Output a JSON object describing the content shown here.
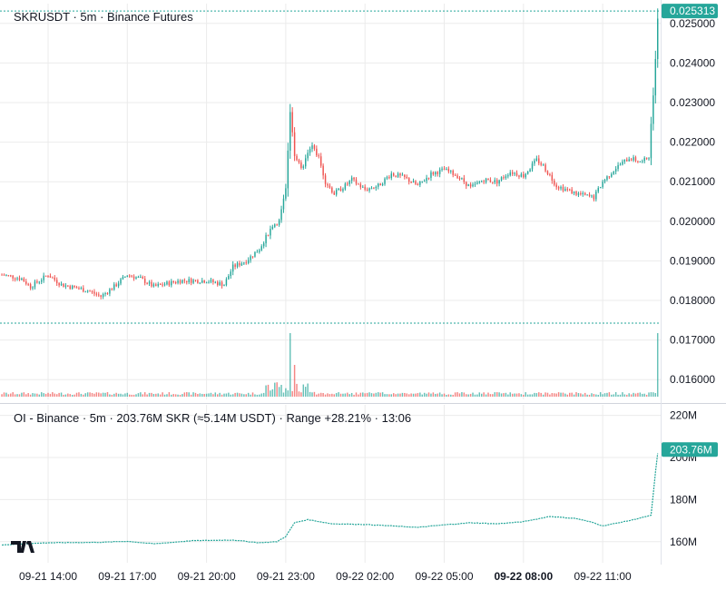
{
  "price_pane": {
    "legend": "SKRUSDT · 5m · Binance Futures",
    "last_price_label": "0.025313",
    "volume_line_label": ""
  },
  "oi_pane": {
    "legend": "OI - Binance · 5m · 203.76M SKR (≈5.14M USDT) · Range +28.21% · 13:06",
    "last_value_label": "203.76M"
  },
  "colors": {
    "up": "#26a69a",
    "down": "#ef5350",
    "grid": "#ebebeb",
    "price_tag_bg": "#26a69a",
    "dotted_line": "#26a69a",
    "oi_line": "#26a69a"
  },
  "chart_data": [
    {
      "type": "candlestick",
      "symbol": "SKRUSDT",
      "interval": "5m",
      "exchange": "Binance Futures",
      "y_ticks": [
        "0.016000",
        "0.017000",
        "0.018000",
        "0.019000",
        "0.020000",
        "0.021000",
        "0.022000",
        "0.023000",
        "0.024000",
        "0.025000"
      ],
      "ylim": [
        0.0155,
        0.0255
      ],
      "x_ticks": [
        "09-21 14:00",
        "09-21 17:00",
        "09-21 20:00",
        "09-21 23:00",
        "09-22 02:00",
        "09-22 05:00",
        "09-22 08:00",
        "09-22 11:00"
      ],
      "x_tick_bold": "09-22 08:00",
      "last_price": 0.025313,
      "series_points": [
        {
          "t": "09-21 12:15",
          "close": 0.01865
        },
        {
          "t": "09-21 13:00",
          "close": 0.01855
        },
        {
          "t": "09-21 13:20",
          "close": 0.01835
        },
        {
          "t": "09-21 14:00",
          "close": 0.01865
        },
        {
          "t": "09-21 14:30",
          "close": 0.0184
        },
        {
          "t": "09-21 15:30",
          "close": 0.01825
        },
        {
          "t": "09-21 16:00",
          "close": 0.0181
        },
        {
          "t": "09-21 16:30",
          "close": 0.01835
        },
        {
          "t": "09-21 17:00",
          "close": 0.01865
        },
        {
          "t": "09-21 17:30",
          "close": 0.01855
        },
        {
          "t": "09-21 18:00",
          "close": 0.01835
        },
        {
          "t": "09-21 19:00",
          "close": 0.0185
        },
        {
          "t": "09-21 20:00",
          "close": 0.0185
        },
        {
          "t": "09-21 20:40",
          "close": 0.0184
        },
        {
          "t": "09-21 21:00",
          "close": 0.01885
        },
        {
          "t": "09-21 21:30",
          "close": 0.019
        },
        {
          "t": "09-21 22:00",
          "close": 0.0193
        },
        {
          "t": "09-21 22:30",
          "close": 0.0199
        },
        {
          "t": "09-21 22:45",
          "close": 0.02
        },
        {
          "t": "09-21 23:00",
          "close": 0.0208
        },
        {
          "t": "09-21 23:10",
          "close": 0.0228
        },
        {
          "t": "09-21 23:20",
          "close": 0.0217
        },
        {
          "t": "09-21 23:35",
          "close": 0.0213
        },
        {
          "t": "09-21 23:50",
          "close": 0.0217
        },
        {
          "t": "09-22 00:00",
          "close": 0.0219
        },
        {
          "t": "09-22 00:15",
          "close": 0.0216
        },
        {
          "t": "09-22 00:30",
          "close": 0.021
        },
        {
          "t": "09-22 00:50",
          "close": 0.0207
        },
        {
          "t": "09-22 01:15",
          "close": 0.0209
        },
        {
          "t": "09-22 01:30",
          "close": 0.02105
        },
        {
          "t": "09-22 02:00",
          "close": 0.0208
        },
        {
          "t": "09-22 02:30",
          "close": 0.0209
        },
        {
          "t": "09-22 03:00",
          "close": 0.0212
        },
        {
          "t": "09-22 03:30",
          "close": 0.0211
        },
        {
          "t": "09-22 04:00",
          "close": 0.0209
        },
        {
          "t": "09-22 04:30",
          "close": 0.0212
        },
        {
          "t": "09-22 05:00",
          "close": 0.0213
        },
        {
          "t": "09-22 05:30",
          "close": 0.02115
        },
        {
          "t": "09-22 06:00",
          "close": 0.02085
        },
        {
          "t": "09-22 06:30",
          "close": 0.02105
        },
        {
          "t": "09-22 07:00",
          "close": 0.021
        },
        {
          "t": "09-22 07:30",
          "close": 0.02125
        },
        {
          "t": "09-22 08:00",
          "close": 0.02115
        },
        {
          "t": "09-22 08:30",
          "close": 0.02155
        },
        {
          "t": "09-22 08:45",
          "close": 0.0214
        },
        {
          "t": "09-22 09:15",
          "close": 0.0209
        },
        {
          "t": "09-22 10:00",
          "close": 0.0207
        },
        {
          "t": "09-22 10:40",
          "close": 0.0206
        },
        {
          "t": "09-22 11:00",
          "close": 0.021
        },
        {
          "t": "09-22 11:30",
          "close": 0.02135
        },
        {
          "t": "09-22 12:00",
          "close": 0.0216
        },
        {
          "t": "09-22 12:30",
          "close": 0.0215
        },
        {
          "t": "09-22 12:45",
          "close": 0.02165
        },
        {
          "t": "09-22 12:55",
          "close": 0.0232
        },
        {
          "t": "09-22 13:06",
          "close": 0.025313
        }
      ],
      "volume_spikes": [
        {
          "t": "09-21 23:10",
          "relative": 1.0
        },
        {
          "t": "09-21 23:20",
          "relative": 0.5
        },
        {
          "t": "09-22 13:06",
          "relative": 1.0
        }
      ]
    },
    {
      "type": "line",
      "name": "OI - Binance",
      "y_ticks": [
        "160M",
        "180M",
        "200M",
        "220M"
      ],
      "ylim": [
        150,
        225
      ],
      "last_value": 203.76,
      "unit": "M",
      "series_points": [
        {
          "t": "09-21 12:15",
          "value": 158.5
        },
        {
          "t": "09-21 14:00",
          "value": 159.5
        },
        {
          "t": "09-21 16:00",
          "value": 159.7
        },
        {
          "t": "09-21 17:00",
          "value": 160.2
        },
        {
          "t": "09-21 18:00",
          "value": 159.0
        },
        {
          "t": "09-21 19:30",
          "value": 160.5
        },
        {
          "t": "09-21 21:00",
          "value": 160.8
        },
        {
          "t": "09-21 22:00",
          "value": 159.5
        },
        {
          "t": "09-21 22:40",
          "value": 160.0
        },
        {
          "t": "09-21 23:00",
          "value": 162.5
        },
        {
          "t": "09-21 23:20",
          "value": 169.0
        },
        {
          "t": "09-21 23:50",
          "value": 170.5
        },
        {
          "t": "09-22 00:45",
          "value": 168.5
        },
        {
          "t": "09-22 02:00",
          "value": 168.2
        },
        {
          "t": "09-22 03:00",
          "value": 167.5
        },
        {
          "t": "09-22 04:00",
          "value": 166.8
        },
        {
          "t": "09-22 05:00",
          "value": 168.0
        },
        {
          "t": "09-22 06:00",
          "value": 169.0
        },
        {
          "t": "09-22 07:00",
          "value": 168.5
        },
        {
          "t": "09-22 08:00",
          "value": 169.5
        },
        {
          "t": "09-22 09:00",
          "value": 172.0
        },
        {
          "t": "09-22 10:00",
          "value": 171.0
        },
        {
          "t": "09-22 10:40",
          "value": 169.0
        },
        {
          "t": "09-22 11:00",
          "value": 167.5
        },
        {
          "t": "09-22 12:00",
          "value": 170.0
        },
        {
          "t": "09-22 12:50",
          "value": 172.5
        },
        {
          "t": "09-22 13:00",
          "value": 193.0
        },
        {
          "t": "09-22 13:06",
          "value": 203.76
        }
      ]
    }
  ]
}
